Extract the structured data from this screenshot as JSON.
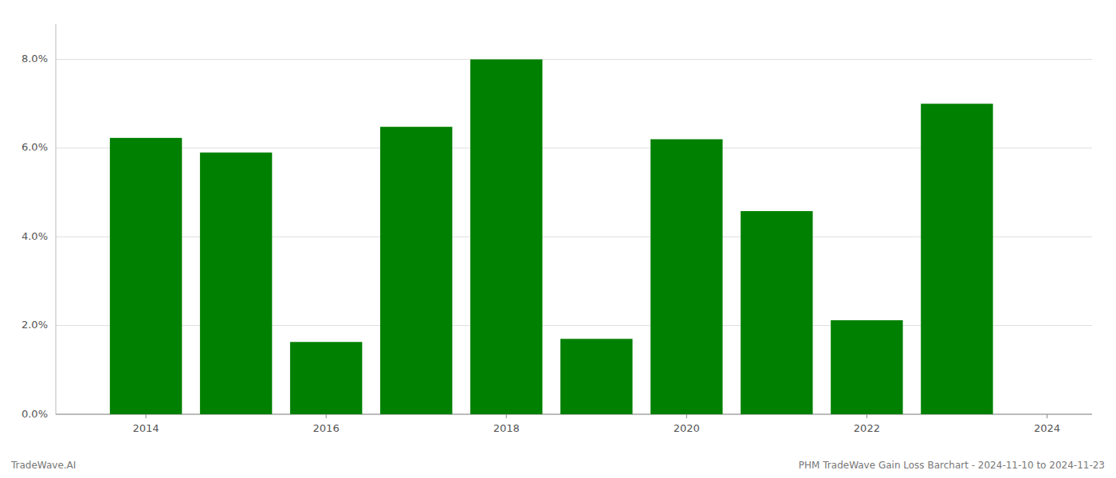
{
  "chart_data": {
    "type": "bar",
    "x": [
      2014,
      2015,
      2016,
      2017,
      2018,
      2019,
      2020,
      2021,
      2022,
      2023
    ],
    "values": [
      0.0623,
      0.059,
      0.0163,
      0.0648,
      0.08,
      0.017,
      0.062,
      0.0458,
      0.0212,
      0.07
    ],
    "color": "#008000",
    "xlim": [
      2013,
      2024.5
    ],
    "xticks": [
      2014,
      2016,
      2018,
      2020,
      2022,
      2024
    ],
    "ylim": [
      0.0,
      0.088
    ],
    "yticks": [
      {
        "value": 0.0,
        "label": "0.0%"
      },
      {
        "value": 0.02,
        "label": "2.0%"
      },
      {
        "value": 0.04,
        "label": "4.0%"
      },
      {
        "value": 0.06,
        "label": "6.0%"
      },
      {
        "value": 0.08,
        "label": "8.0%"
      }
    ],
    "grid": true,
    "annotations": [
      "TradeWave.AI",
      "PHM TradeWave Gain Loss Barchart - 2024-11-10 to 2024-11-23"
    ]
  }
}
